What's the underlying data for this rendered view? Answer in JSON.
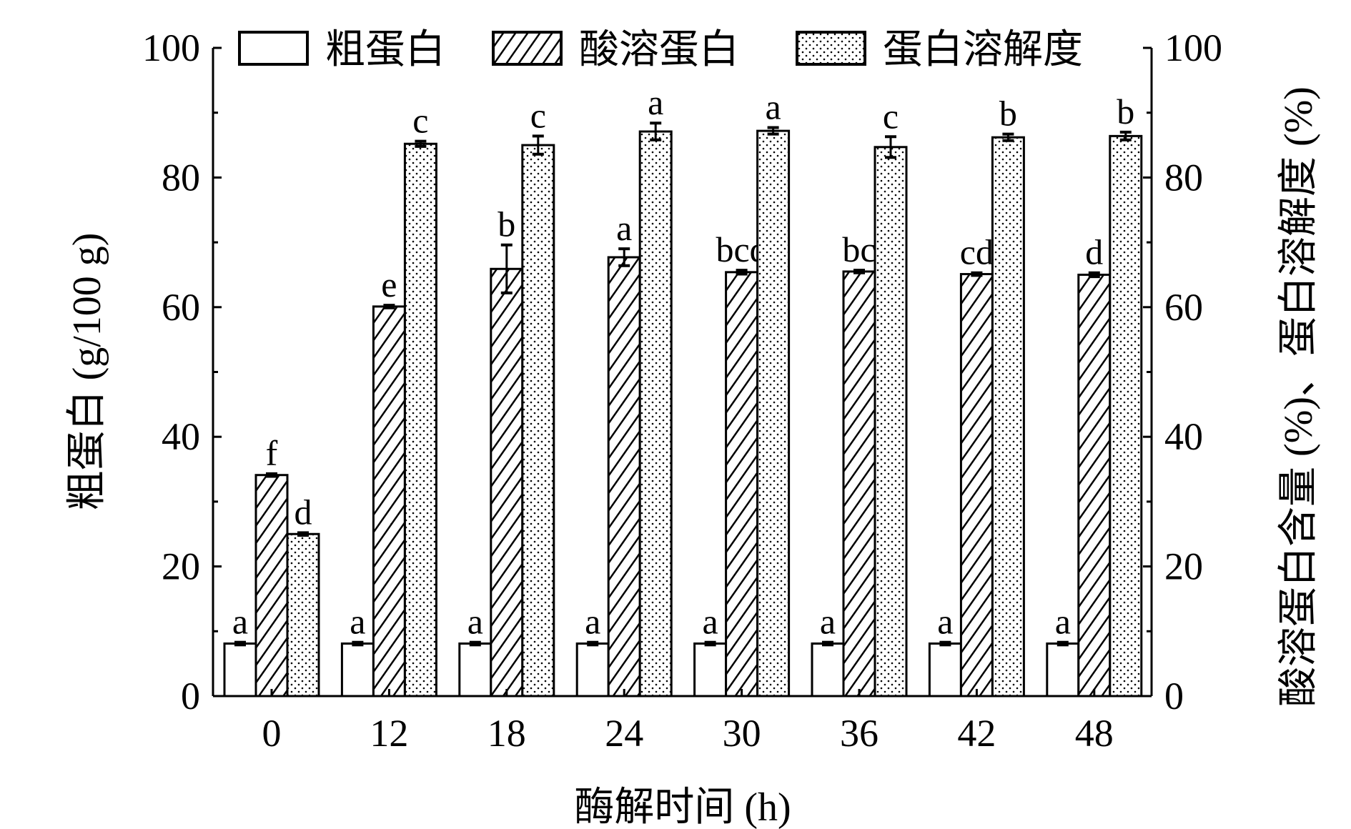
{
  "chart_data": {
    "type": "bar",
    "xlabel": "酶解时间 (h)",
    "ylabel": "粗蛋白 (g/100 g)",
    "y2label": "酸溶蛋白含量 (%)、蛋白溶解度 (%)",
    "ylim": [
      0,
      100
    ],
    "y2lim": [
      0,
      100
    ],
    "yticks": [
      0,
      20,
      40,
      60,
      80,
      100
    ],
    "y2ticks": [
      0,
      20,
      40,
      60,
      80,
      100
    ],
    "categories": [
      "0",
      "12",
      "18",
      "24",
      "30",
      "36",
      "42",
      "48"
    ],
    "legend_position": "top",
    "series": [
      {
        "name": "粗蛋白",
        "pattern": "blank",
        "values": [
          8.1,
          8.1,
          8.1,
          8.1,
          8.1,
          8.1,
          8.1,
          8.1
        ],
        "errors": [
          0.2,
          0.2,
          0.2,
          0.2,
          0.2,
          0.2,
          0.2,
          0.2
        ],
        "letters": [
          "a",
          "a",
          "a",
          "a",
          "a",
          "a",
          "a",
          "a"
        ]
      },
      {
        "name": "酸溶蛋白",
        "pattern": "hatch",
        "values": [
          34.1,
          60.1,
          65.9,
          67.7,
          65.4,
          65.5,
          65.1,
          65.0
        ],
        "errors": [
          0.2,
          0.2,
          3.7,
          1.3,
          0.3,
          0.2,
          0.2,
          0.3
        ],
        "letters": [
          "f",
          "e",
          "b",
          "a",
          "bcd",
          "bc",
          "cd",
          "d"
        ]
      },
      {
        "name": "蛋白溶解度",
        "pattern": "dots",
        "values": [
          25.0,
          85.2,
          85.0,
          87.1,
          87.2,
          84.7,
          86.2,
          86.4
        ],
        "errors": [
          0.2,
          0.4,
          1.4,
          1.3,
          0.5,
          1.6,
          0.5,
          0.6
        ],
        "letters": [
          "d",
          "c",
          "c",
          "a",
          "a",
          "c",
          "b",
          "b"
        ]
      }
    ]
  }
}
